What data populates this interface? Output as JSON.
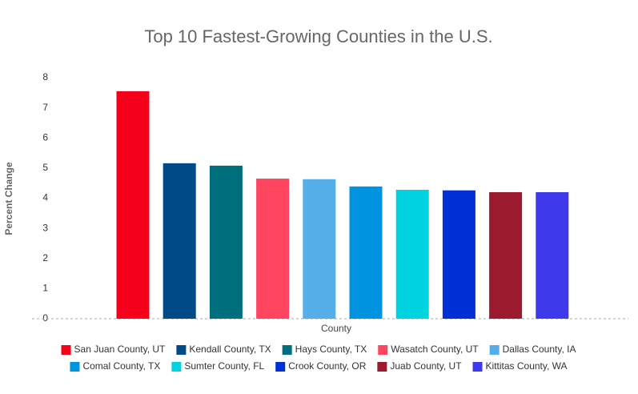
{
  "chart_data": {
    "type": "bar",
    "title": "Top 10 Fastest-Growing Counties in the U.S.",
    "x_label": "County",
    "y_label": "Percent Change",
    "ylim": [
      0,
      8
    ],
    "yticks": [
      0,
      1,
      2,
      3,
      4,
      5,
      6,
      7,
      8
    ],
    "series": [
      {
        "name": "San Juan County, UT",
        "color": "#f5001a",
        "values": [
          7.55
        ]
      },
      {
        "name": "Kendall County, TX",
        "color": "#004a87",
        "values": [
          5.16
        ]
      },
      {
        "name": "Hays County, TX",
        "color": "#006f7d",
        "values": [
          5.08
        ]
      },
      {
        "name": "Wasatch County, UT",
        "color": "#ff4560",
        "values": [
          4.65
        ]
      },
      {
        "name": "Dallas County, IA",
        "color": "#55aee8",
        "values": [
          4.63
        ]
      },
      {
        "name": "Comal County, TX",
        "color": "#0094e0",
        "values": [
          4.39
        ]
      },
      {
        "name": "Sumter County, FL",
        "color": "#00d3e0",
        "values": [
          4.28
        ]
      },
      {
        "name": "Crook County, OR",
        "color": "#0030d6",
        "values": [
          4.26
        ]
      },
      {
        "name": "Juab County, UT",
        "color": "#9c1a2e",
        "values": [
          4.2
        ]
      },
      {
        "name": "Kittitas County, WA",
        "color": "#3e3aeb",
        "values": [
          4.2
        ]
      }
    ]
  }
}
